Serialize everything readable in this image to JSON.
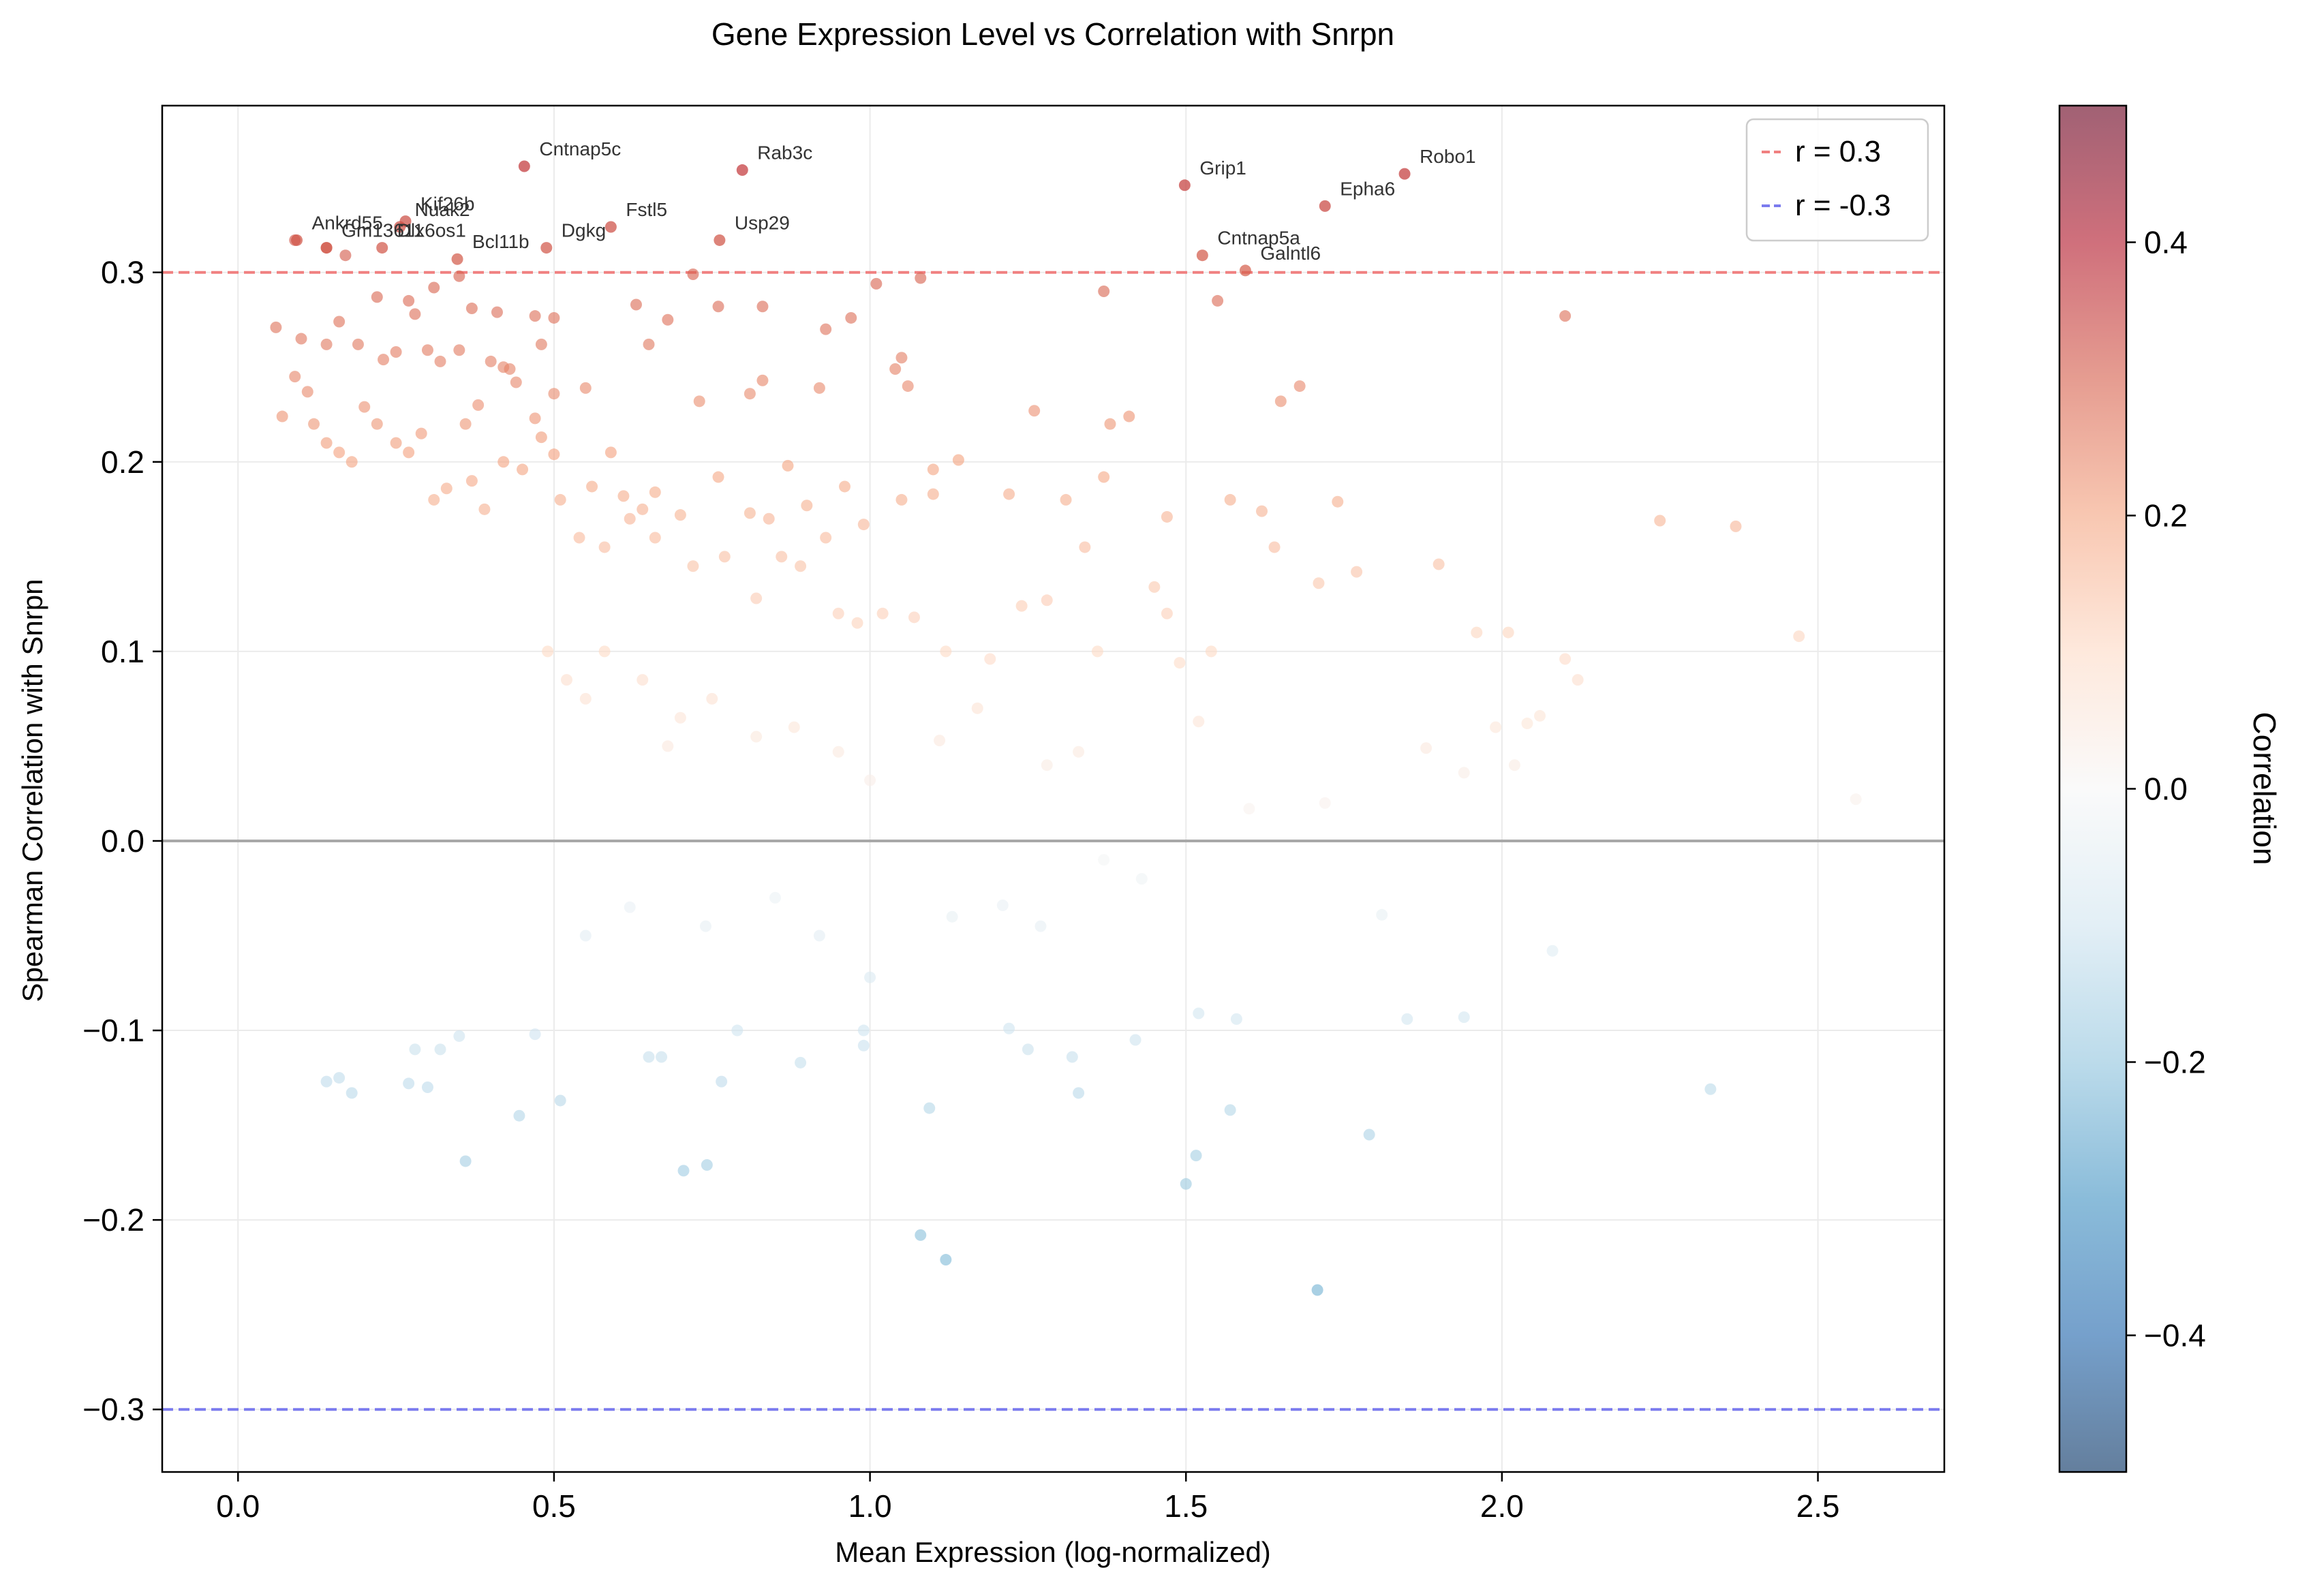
{
  "chart_data": {
    "type": "scatter",
    "title": "Gene Expression Level vs Correlation with Snrpn",
    "xlabel": "Mean Expression (log-normalized)",
    "ylabel": "Spearman Correlation with Snrpn",
    "xlim": [
      -0.12,
      2.7
    ],
    "ylim": [
      -0.333,
      0.388
    ],
    "x_ticks": [
      0.0,
      0.5,
      1.0,
      1.5,
      2.0,
      2.5
    ],
    "x_tick_labels": [
      "0.0",
      "0.5",
      "1.0",
      "1.5",
      "2.0",
      "2.5"
    ],
    "y_ticks": [
      -0.3,
      -0.2,
      -0.1,
      0.0,
      0.1,
      0.2,
      0.3
    ],
    "y_tick_labels": [
      "−0.3",
      "−0.2",
      "−0.1",
      "0.0",
      "0.1",
      "0.2",
      "0.3"
    ],
    "grid": true,
    "colormap": "RdBu_r",
    "color_range": [
      -0.5,
      0.5
    ],
    "colorbar": {
      "label": "Correlation",
      "ticks": [
        0.4,
        0.2,
        0.0,
        -0.2,
        -0.4
      ],
      "tick_labels": [
        "0.4",
        "0.2",
        "0.0",
        "−0.2",
        "−0.4"
      ]
    },
    "reference_lines": [
      {
        "name": "r = 0.3",
        "y": 0.3,
        "color": "#f08080",
        "style": "dashed"
      },
      {
        "name": "r = -0.3",
        "y": -0.3,
        "color": "#7b7bee",
        "style": "dashed"
      },
      {
        "name": "",
        "y": 0.0,
        "color": "#a8a8a8",
        "style": "solid"
      }
    ],
    "legend": {
      "position": "top-right",
      "entries": [
        {
          "label": "r = 0.3",
          "color": "#f08080"
        },
        {
          "label": "r = -0.3",
          "color": "#7b7bee"
        }
      ]
    },
    "labeled_points": [
      {
        "label": "Cntnap5c",
        "x": 0.453,
        "y": 0.356
      },
      {
        "label": "Rab3c",
        "x": 0.798,
        "y": 0.354
      },
      {
        "label": "Robo1",
        "x": 1.846,
        "y": 0.352
      },
      {
        "label": "Grip1",
        "x": 1.498,
        "y": 0.346
      },
      {
        "label": "Epha6",
        "x": 1.72,
        "y": 0.335
      },
      {
        "label": "Kif26b",
        "x": 0.265,
        "y": 0.327
      },
      {
        "label": "Fstl5",
        "x": 0.59,
        "y": 0.324
      },
      {
        "label": "Usp29",
        "x": 0.762,
        "y": 0.317
      },
      {
        "label": "Ankrd55",
        "x": 0.093,
        "y": 0.317
      },
      {
        "label": "Gm13611",
        "x": 0.14,
        "y": 0.313
      },
      {
        "label": "Nuak2",
        "x": 0.256,
        "y": 0.324
      },
      {
        "label": "Dlx6os1",
        "x": 0.228,
        "y": 0.313
      },
      {
        "label": "Dgkg",
        "x": 0.488,
        "y": 0.313
      },
      {
        "label": "Bcl11b",
        "x": 0.347,
        "y": 0.307
      },
      {
        "label": "Cntnap5a",
        "x": 1.526,
        "y": 0.309
      },
      {
        "label": "Galntl6",
        "x": 1.594,
        "y": 0.301
      }
    ],
    "points": [
      [
        0.18,
        -0.133
      ],
      [
        0.36,
        -0.169
      ],
      [
        0.445,
        -0.145
      ],
      [
        0.51,
        -0.137
      ],
      [
        0.705,
        -0.174
      ],
      [
        0.742,
        -0.171
      ],
      [
        0.765,
        -0.127
      ],
      [
        1.08,
        -0.208
      ],
      [
        1.12,
        -0.221
      ],
      [
        1.094,
        -0.141
      ],
      [
        1.5,
        -0.181
      ],
      [
        1.516,
        -0.166
      ],
      [
        1.57,
        -0.142
      ],
      [
        1.708,
        -0.237
      ],
      [
        1.79,
        -0.155
      ],
      [
        2.33,
        -0.131
      ],
      [
        1.33,
        -0.133
      ],
      [
        0.14,
        -0.127
      ],
      [
        0.16,
        -0.125
      ],
      [
        0.27,
        -0.128
      ],
      [
        0.3,
        -0.13
      ],
      [
        0.28,
        -0.11
      ],
      [
        0.32,
        -0.11
      ],
      [
        0.35,
        -0.103
      ],
      [
        0.47,
        -0.102
      ],
      [
        0.65,
        -0.114
      ],
      [
        0.67,
        -0.114
      ],
      [
        0.79,
        -0.1
      ],
      [
        0.89,
        -0.117
      ],
      [
        0.99,
        -0.1
      ],
      [
        0.99,
        -0.108
      ],
      [
        1.22,
        -0.099
      ],
      [
        1.25,
        -0.11
      ],
      [
        1.32,
        -0.114
      ],
      [
        1.42,
        -0.105
      ],
      [
        1.52,
        -0.091
      ],
      [
        1.58,
        -0.094
      ],
      [
        1.85,
        -0.094
      ],
      [
        1.94,
        -0.093
      ],
      [
        2.08,
        -0.058
      ],
      [
        1.81,
        -0.039
      ],
      [
        1.43,
        -0.02
      ],
      [
        1.37,
        -0.01
      ],
      [
        1.27,
        -0.045
      ],
      [
        1.21,
        -0.034
      ],
      [
        1.13,
        -0.04
      ],
      [
        1.0,
        -0.072
      ],
      [
        0.92,
        -0.05
      ],
      [
        0.85,
        -0.03
      ],
      [
        0.74,
        -0.045
      ],
      [
        0.62,
        -0.035
      ],
      [
        0.55,
        -0.05
      ],
      [
        0.09,
        0.317
      ],
      [
        0.14,
        0.313
      ],
      [
        0.17,
        0.309
      ],
      [
        0.22,
        0.287
      ],
      [
        0.27,
        0.285
      ],
      [
        0.31,
        0.292
      ],
      [
        0.35,
        0.298
      ],
      [
        0.37,
        0.281
      ],
      [
        0.41,
        0.279
      ],
      [
        0.47,
        0.277
      ],
      [
        0.5,
        0.276
      ],
      [
        0.48,
        0.262
      ],
      [
        0.42,
        0.25
      ],
      [
        0.38,
        0.23
      ],
      [
        0.36,
        0.22
      ],
      [
        0.44,
        0.242
      ],
      [
        0.5,
        0.236
      ],
      [
        0.55,
        0.239
      ],
      [
        0.63,
        0.283
      ],
      [
        0.68,
        0.275
      ],
      [
        0.65,
        0.262
      ],
      [
        0.72,
        0.299
      ],
      [
        0.76,
        0.282
      ],
      [
        0.83,
        0.282
      ],
      [
        0.93,
        0.27
      ],
      [
        0.97,
        0.276
      ],
      [
        1.01,
        0.294
      ],
      [
        1.08,
        0.297
      ],
      [
        1.04,
        0.249
      ],
      [
        1.05,
        0.255
      ],
      [
        1.06,
        0.24
      ],
      [
        0.81,
        0.236
      ],
      [
        0.83,
        0.243
      ],
      [
        0.92,
        0.239
      ],
      [
        0.73,
        0.232
      ],
      [
        1.37,
        0.29
      ],
      [
        1.55,
        0.285
      ],
      [
        1.26,
        0.227
      ],
      [
        1.38,
        0.22
      ],
      [
        1.41,
        0.224
      ],
      [
        1.65,
        0.232
      ],
      [
        1.68,
        0.24
      ],
      [
        2.1,
        0.277
      ],
      [
        0.06,
        0.271
      ],
      [
        0.1,
        0.265
      ],
      [
        0.14,
        0.262
      ],
      [
        0.16,
        0.274
      ],
      [
        0.19,
        0.262
      ],
      [
        0.23,
        0.254
      ],
      [
        0.25,
        0.258
      ],
      [
        0.28,
        0.278
      ],
      [
        0.3,
        0.259
      ],
      [
        0.32,
        0.253
      ],
      [
        0.35,
        0.259
      ],
      [
        0.4,
        0.253
      ],
      [
        0.43,
        0.249
      ],
      [
        0.47,
        0.223
      ],
      [
        0.5,
        0.204
      ],
      [
        0.56,
        0.187
      ],
      [
        0.59,
        0.205
      ],
      [
        0.61,
        0.182
      ],
      [
        0.64,
        0.175
      ],
      [
        0.66,
        0.184
      ],
      [
        0.7,
        0.172
      ],
      [
        0.76,
        0.192
      ],
      [
        0.81,
        0.173
      ],
      [
        0.84,
        0.17
      ],
      [
        0.87,
        0.198
      ],
      [
        0.9,
        0.177
      ],
      [
        0.93,
        0.16
      ],
      [
        0.96,
        0.187
      ],
      [
        0.99,
        0.167
      ],
      [
        1.05,
        0.18
      ],
      [
        1.1,
        0.196
      ],
      [
        1.1,
        0.183
      ],
      [
        1.14,
        0.201
      ],
      [
        1.22,
        0.183
      ],
      [
        1.31,
        0.18
      ],
      [
        1.37,
        0.192
      ],
      [
        1.47,
        0.171
      ],
      [
        1.57,
        0.18
      ],
      [
        1.62,
        0.174
      ],
      [
        1.74,
        0.179
      ],
      [
        1.64,
        0.155
      ],
      [
        1.71,
        0.136
      ],
      [
        1.77,
        0.142
      ],
      [
        1.9,
        0.146
      ],
      [
        2.25,
        0.169
      ],
      [
        2.37,
        0.166
      ],
      [
        0.07,
        0.224
      ],
      [
        0.09,
        0.245
      ],
      [
        0.11,
        0.237
      ],
      [
        0.12,
        0.22
      ],
      [
        0.14,
        0.21
      ],
      [
        0.16,
        0.205
      ],
      [
        0.18,
        0.2
      ],
      [
        0.2,
        0.229
      ],
      [
        0.22,
        0.22
      ],
      [
        0.25,
        0.21
      ],
      [
        0.27,
        0.205
      ],
      [
        0.29,
        0.215
      ],
      [
        0.31,
        0.18
      ],
      [
        0.33,
        0.186
      ],
      [
        0.37,
        0.19
      ],
      [
        0.39,
        0.175
      ],
      [
        0.42,
        0.2
      ],
      [
        0.45,
        0.196
      ],
      [
        0.48,
        0.213
      ],
      [
        0.51,
        0.18
      ],
      [
        0.54,
        0.16
      ],
      [
        0.58,
        0.155
      ],
      [
        0.62,
        0.17
      ],
      [
        0.66,
        0.16
      ],
      [
        0.72,
        0.145
      ],
      [
        0.77,
        0.15
      ],
      [
        0.82,
        0.128
      ],
      [
        0.86,
        0.15
      ],
      [
        0.89,
        0.145
      ],
      [
        0.95,
        0.12
      ],
      [
        0.98,
        0.115
      ],
      [
        1.02,
        0.12
      ],
      [
        1.07,
        0.118
      ],
      [
        1.12,
        0.1
      ],
      [
        1.19,
        0.096
      ],
      [
        1.24,
        0.124
      ],
      [
        1.28,
        0.127
      ],
      [
        1.34,
        0.155
      ],
      [
        1.36,
        0.1
      ],
      [
        1.45,
        0.134
      ],
      [
        1.47,
        0.12
      ],
      [
        1.54,
        0.1
      ],
      [
        1.49,
        0.094
      ],
      [
        1.96,
        0.11
      ],
      [
        2.01,
        0.11
      ],
      [
        2.1,
        0.096
      ],
      [
        2.12,
        0.085
      ],
      [
        2.47,
        0.108
      ],
      [
        2.04,
        0.062
      ],
      [
        2.06,
        0.066
      ],
      [
        1.99,
        0.06
      ],
      [
        1.88,
        0.049
      ],
      [
        1.94,
        0.036
      ],
      [
        2.02,
        0.04
      ],
      [
        1.52,
        0.063
      ],
      [
        1.6,
        0.017
      ],
      [
        1.72,
        0.02
      ],
      [
        1.33,
        0.047
      ],
      [
        1.28,
        0.04
      ],
      [
        1.11,
        0.053
      ],
      [
        1.17,
        0.07
      ],
      [
        2.56,
        0.022
      ],
      [
        1.0,
        0.032
      ],
      [
        0.95,
        0.047
      ],
      [
        0.88,
        0.06
      ],
      [
        0.82,
        0.055
      ],
      [
        0.75,
        0.075
      ],
      [
        0.7,
        0.065
      ],
      [
        0.68,
        0.05
      ],
      [
        0.64,
        0.085
      ],
      [
        0.58,
        0.1
      ],
      [
        0.55,
        0.075
      ],
      [
        0.52,
        0.085
      ],
      [
        0.49,
        0.1
      ]
    ]
  }
}
